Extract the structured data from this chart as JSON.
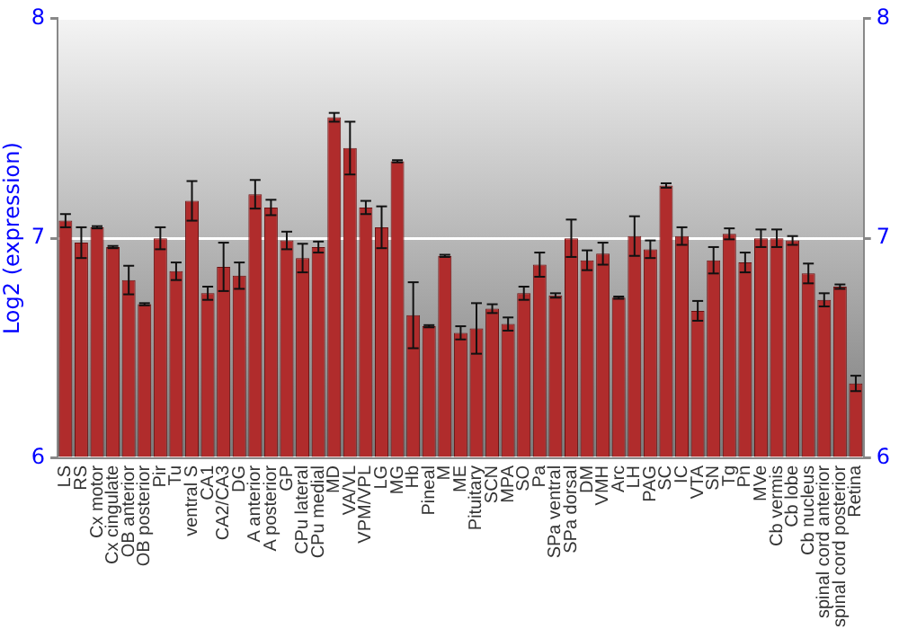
{
  "chart_data": {
    "type": "bar",
    "ylabel": "Log2 (expression)",
    "categories": [
      "LS",
      "RS",
      "Cx motor",
      "Cx cingulate",
      "OB anterior",
      "OB posterior",
      "Pir",
      "Tu",
      "ventral S",
      "CA1",
      "CA2/CA3",
      "DG",
      "A anterior",
      "A posterior",
      "GP",
      "CPu lateral",
      "CPu medial",
      "MD",
      "VA/VL",
      "VPM/VPL",
      "LG",
      "MG",
      "Hb",
      "Pineal",
      "M",
      "ME",
      "Pituitary",
      "SCN",
      "MPA",
      "SO",
      "Pa",
      "SPa ventral",
      "SPa dorsal",
      "DM",
      "VMH",
      "Arc",
      "LH",
      "PAG",
      "SC",
      "IC",
      "VTA",
      "SN",
      "Tg",
      "Pn",
      "MVe",
      "Cb vermis",
      "Cb lobe",
      "Cb nucleus",
      "spinal cord anterior",
      "spinal cord posterior",
      "Retina"
    ],
    "values": [
      7.08,
      6.98,
      7.05,
      6.96,
      6.81,
      6.7,
      7.0,
      6.85,
      7.17,
      6.75,
      6.87,
      6.83,
      7.2,
      7.14,
      6.99,
      6.91,
      6.96,
      7.55,
      7.41,
      7.14,
      7.05,
      7.35,
      6.65,
      6.6,
      6.92,
      6.57,
      6.59,
      6.68,
      6.61,
      6.75,
      6.88,
      6.74,
      7.0,
      6.9,
      6.93,
      6.73,
      7.01,
      6.95,
      7.24,
      7.01,
      6.67,
      6.9,
      7.02,
      6.89,
      7.0,
      7.0,
      6.99,
      6.84,
      6.72,
      6.78,
      6.34
    ],
    "errors": [
      0.03,
      0.07,
      0.005,
      0.005,
      0.065,
      0.005,
      0.05,
      0.04,
      0.09,
      0.03,
      0.11,
      0.06,
      0.065,
      0.035,
      0.04,
      0.065,
      0.025,
      0.02,
      0.12,
      0.03,
      0.095,
      0.005,
      0.15,
      0.005,
      0.005,
      0.03,
      0.115,
      0.02,
      0.03,
      0.03,
      0.055,
      0.01,
      0.085,
      0.045,
      0.05,
      0.005,
      0.09,
      0.04,
      0.01,
      0.04,
      0.045,
      0.06,
      0.025,
      0.045,
      0.04,
      0.04,
      0.02,
      0.045,
      0.03,
      0.01,
      0.035
    ],
    "color": "#b02c2c",
    "ylim": [
      6,
      8
    ],
    "yticks": [
      6,
      7,
      8
    ],
    "y2lim": [
      6,
      8
    ],
    "y2ticks": [
      6,
      7,
      8
    ],
    "grid": "y",
    "legend": false
  }
}
